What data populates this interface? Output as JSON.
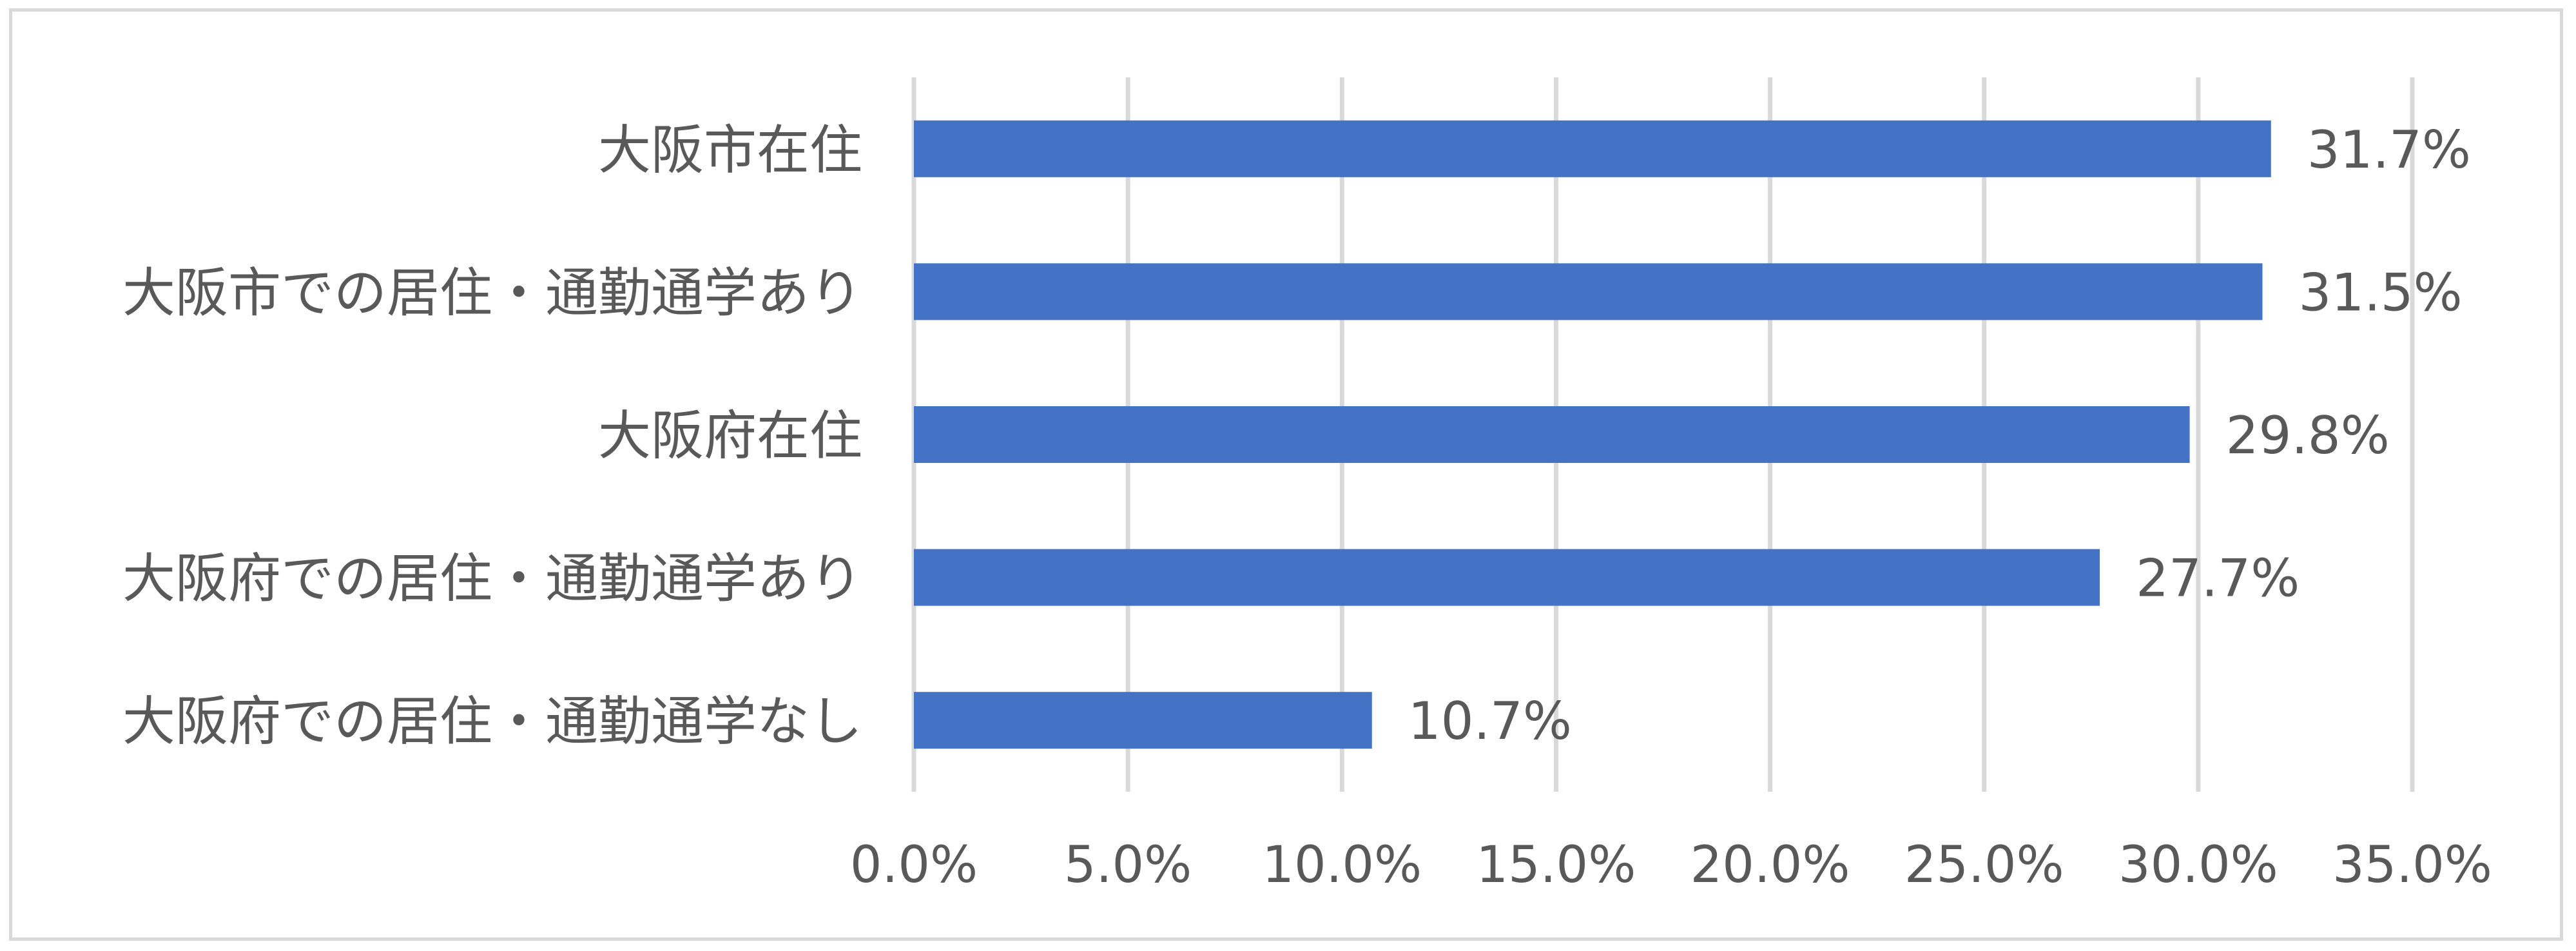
{
  "chart_data": {
    "type": "bar",
    "orientation": "horizontal",
    "categories": [
      "大阪市在住",
      "大阪市での居住・通勤通学あり",
      "大阪府在住",
      "大阪府での居住・通勤通学あり",
      "大阪府での居住・通勤通学なし"
    ],
    "values": [
      31.7,
      31.5,
      29.8,
      27.7,
      10.7
    ],
    "value_labels": [
      "31.7%",
      "31.5%",
      "29.8%",
      "27.7%",
      "10.7%"
    ],
    "x_ticks": [
      "0.0%",
      "5.0%",
      "10.0%",
      "15.0%",
      "20.0%",
      "25.0%",
      "30.0%",
      "35.0%"
    ],
    "xlim": [
      0,
      35
    ],
    "grid": "vertical",
    "legend": "none",
    "colors": {
      "bar": "#4472c4",
      "grid": "#d9d9d9",
      "text": "#595959",
      "border": "#d9d9d9"
    }
  }
}
